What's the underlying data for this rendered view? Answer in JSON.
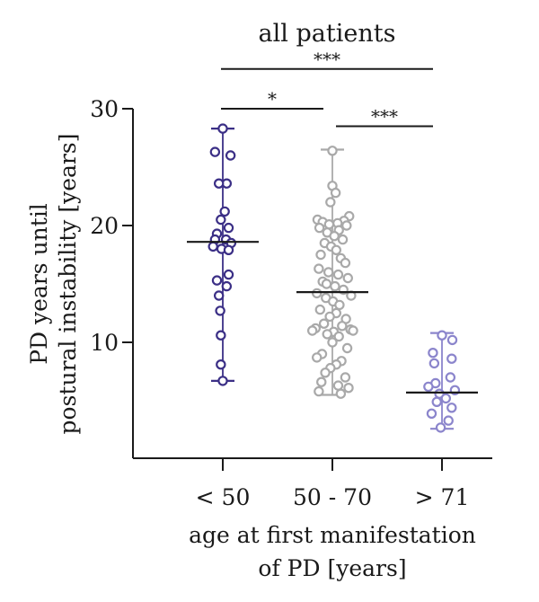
{
  "chart_data": {
    "type": "scatter",
    "title": "all patients",
    "ylabel": [
      "PD years until",
      "postural instability [years]"
    ],
    "xlabel": [
      "age at first manifestation",
      "of PD [years]"
    ],
    "categories": [
      "< 50",
      "50 - 70",
      "> 71"
    ],
    "ylim": [
      0,
      30
    ],
    "yticks": [
      10,
      20,
      30
    ],
    "grid": false,
    "colors": [
      "#3b2f86",
      "#a9a9a9",
      "#8b85cc"
    ],
    "series": [
      {
        "values": [
          28.3,
          26.3,
          26.0,
          23.6,
          23.6,
          21.2,
          20.5,
          19.8,
          19.3,
          18.8,
          18.8,
          18.5,
          18.2,
          18.0,
          17.9,
          15.8,
          15.3,
          14.8,
          14.0,
          12.7,
          10.6,
          8.1,
          6.7
        ],
        "offsets": [
          0,
          -1.2,
          1.2,
          0.6,
          -0.6,
          0.3,
          -0.3,
          0.9,
          -0.9,
          0.5,
          -1.2,
          1.3,
          -1.5,
          -0.2,
          0.9,
          0.9,
          -0.9,
          0.6,
          -0.6,
          -0.4,
          -0.3,
          -0.3,
          0
        ],
        "median": 18.6,
        "range": [
          6.7,
          28.3
        ]
      },
      {
        "values": [
          26.4,
          23.4,
          22.8,
          22.0,
          20.8,
          20.5,
          20.4,
          20.3,
          20.2,
          20.1,
          20.0,
          19.8,
          19.6,
          19.4,
          19.1,
          18.8,
          18.5,
          18.2,
          17.9,
          17.5,
          17.2,
          16.8,
          16.3,
          16.0,
          15.8,
          15.5,
          15.2,
          15.0,
          14.8,
          14.5,
          14.2,
          14.0,
          13.8,
          13.5,
          13.2,
          12.8,
          12.5,
          12.2,
          12.0,
          11.6,
          11.4,
          11.2,
          11.1,
          11.0,
          11.0,
          10.9,
          10.7,
          10.5,
          10.0,
          9.5,
          9.0,
          8.7,
          8.4,
          8.1,
          7.8,
          7.4,
          7.0,
          6.6,
          6.3,
          6.1,
          5.8,
          5.6
        ],
        "offsets": [
          0,
          0,
          0.5,
          -0.3,
          2.6,
          -2.3,
          1.8,
          -1.5,
          0.8,
          -0.5,
          2.2,
          -2.0,
          1.0,
          -0.8,
          0.3,
          1.6,
          -1.2,
          -0.2,
          0.6,
          -1.8,
          1.3,
          2.0,
          -2.1,
          -0.6,
          0.9,
          2.4,
          -1.5,
          -0.9,
          0.4,
          1.7,
          -2.4,
          2.9,
          -1.0,
          0.1,
          1.1,
          -1.9,
          0.6,
          -0.4,
          2.1,
          -1.3,
          1.5,
          -2.6,
          2.8,
          -3.1,
          3.2,
          0.2,
          -0.8,
          1.0,
          0.0,
          2.3,
          -1.6,
          -2.4,
          1.4,
          0.6,
          -0.3,
          -1.1,
          2.0,
          -1.7,
          0.9,
          2.5,
          -2.1,
          1.3
        ],
        "median": 14.3,
        "range": [
          5.5,
          26.5
        ]
      },
      {
        "values": [
          10.6,
          10.2,
          9.1,
          8.6,
          8.2,
          7.0,
          6.5,
          6.2,
          5.9,
          5.6,
          5.2,
          4.9,
          4.4,
          3.9,
          3.3,
          2.7
        ],
        "offsets": [
          0,
          1.6,
          -1.4,
          1.5,
          -1.2,
          1.3,
          -1.0,
          -2.1,
          2.0,
          -0.4,
          0.6,
          -0.8,
          1.5,
          -1.6,
          1.0,
          -0.2
        ],
        "median": 5.7,
        "range": [
          2.6,
          10.8
        ]
      }
    ],
    "annotations": [
      {
        "text": "***",
        "from": 0,
        "to": 2,
        "y": 33.4
      },
      {
        "text": "*",
        "from": 0,
        "to": 1,
        "y": 30.0
      },
      {
        "text": "***",
        "from": 1,
        "to": 2,
        "y": 28.5
      }
    ]
  }
}
